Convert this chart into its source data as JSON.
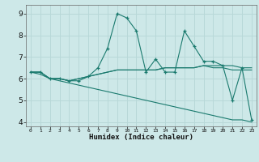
{
  "xlabel": "Humidex (Indice chaleur)",
  "x_values": [
    0,
    1,
    2,
    3,
    4,
    5,
    6,
    7,
    8,
    9,
    10,
    11,
    12,
    13,
    14,
    15,
    16,
    17,
    18,
    19,
    20,
    21,
    22,
    23
  ],
  "line1": [
    6.3,
    6.3,
    6.0,
    6.0,
    5.9,
    5.9,
    6.1,
    6.5,
    7.4,
    9.0,
    8.8,
    8.2,
    6.3,
    6.9,
    6.3,
    6.3,
    8.2,
    7.5,
    6.8,
    6.8,
    6.6,
    5.0,
    6.5,
    4.1
  ],
  "line2": [
    6.3,
    6.3,
    6.0,
    6.0,
    5.9,
    6.0,
    6.1,
    6.2,
    6.3,
    6.4,
    6.4,
    6.4,
    6.4,
    6.4,
    6.5,
    6.5,
    6.5,
    6.5,
    6.6,
    6.6,
    6.6,
    6.6,
    6.5,
    6.5
  ],
  "line3": [
    6.3,
    6.3,
    6.0,
    6.0,
    5.9,
    6.0,
    6.1,
    6.2,
    6.3,
    6.4,
    6.4,
    6.4,
    6.4,
    6.4,
    6.5,
    6.5,
    6.5,
    6.5,
    6.6,
    6.5,
    6.5,
    6.4,
    6.4,
    6.4
  ],
  "line4": [
    6.3,
    6.2,
    6.0,
    5.9,
    5.8,
    5.7,
    5.6,
    5.5,
    5.4,
    5.3,
    5.2,
    5.1,
    5.0,
    4.9,
    4.8,
    4.7,
    4.6,
    4.5,
    4.4,
    4.3,
    4.2,
    4.1,
    4.1,
    4.0
  ],
  "color": "#1a7a6e",
  "background_color": "#cde8e8",
  "grid_color": "#b8d8d8",
  "ylim": [
    3.8,
    9.4
  ],
  "yticks": [
    4,
    5,
    6,
    7,
    8,
    9
  ],
  "xlim": [
    -0.5,
    23.5
  ]
}
